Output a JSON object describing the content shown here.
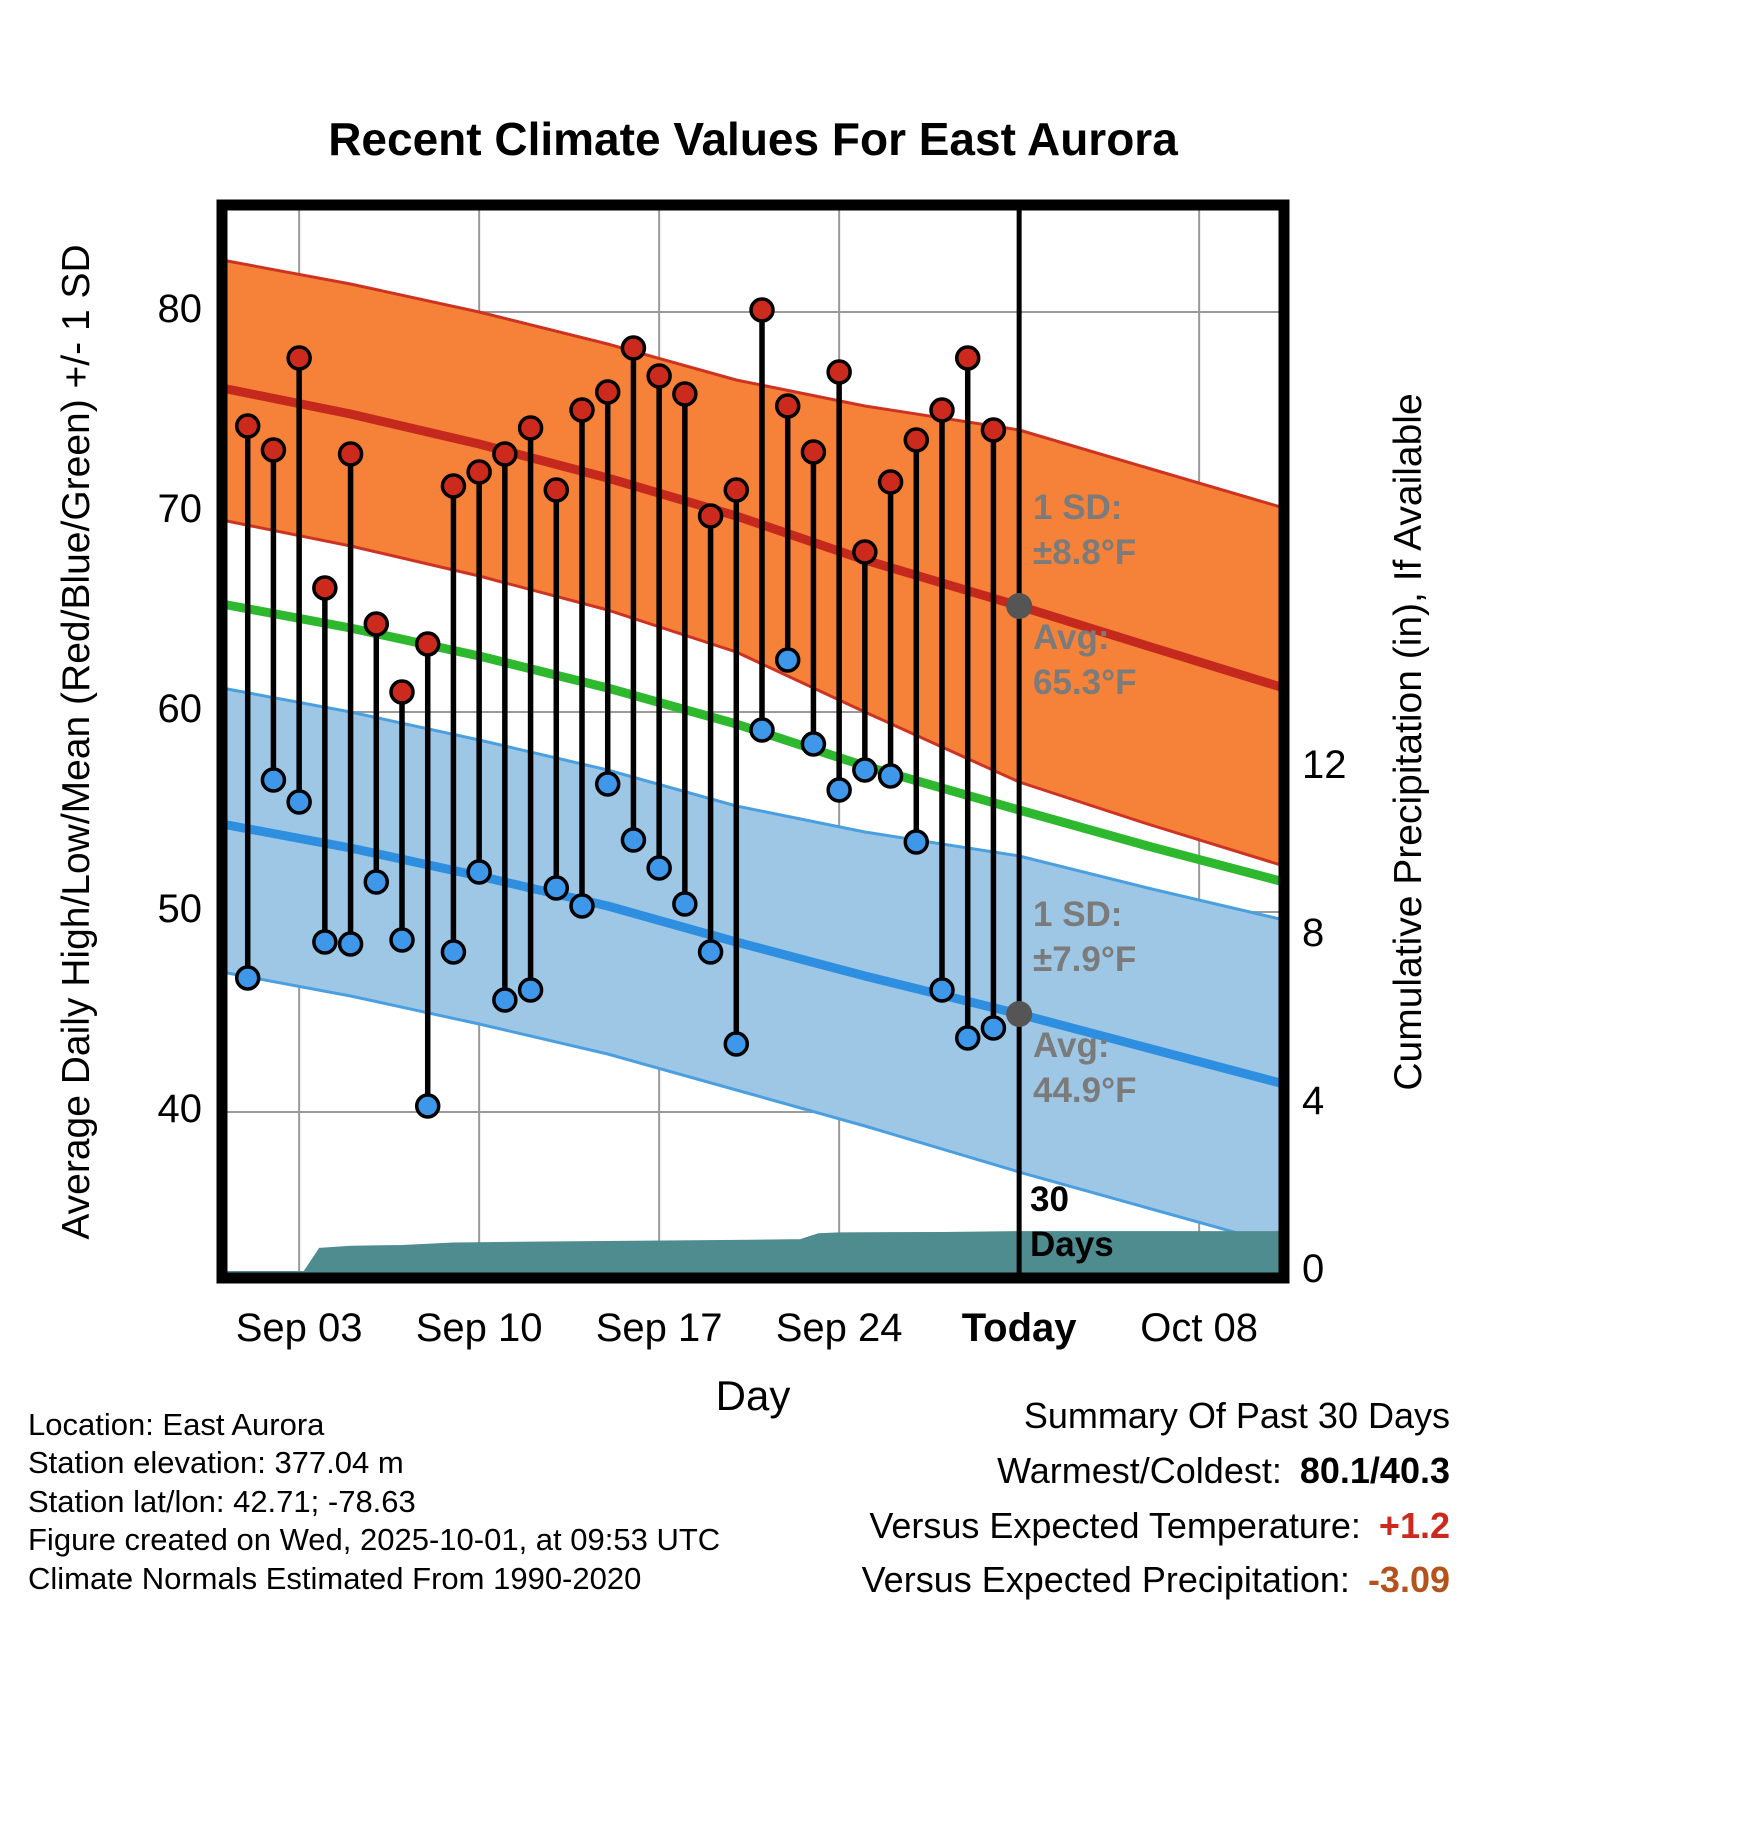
{
  "title": "Recent Climate Values For East Aurora",
  "axes": {
    "y_left_label": "Average Daily High/Low/Mean (Red/Blue/Green) +/- 1 SD",
    "y_right_label": "Cumulative Precipitation (in), If Available",
    "x_label": "Day",
    "x_ticks": [
      {
        "day": 3,
        "label": "Sep 03",
        "bold": false
      },
      {
        "day": 10,
        "label": "Sep 10",
        "bold": false
      },
      {
        "day": 17,
        "label": "Sep 17",
        "bold": false
      },
      {
        "day": 24,
        "label": "Sep 24",
        "bold": false
      },
      {
        "day": 31,
        "label": "Today",
        "bold": true
      },
      {
        "day": 38,
        "label": "Oct 08",
        "bold": false
      }
    ],
    "y_left_ticks": [
      {
        "value": 80,
        "label": "80"
      },
      {
        "value": 70,
        "label": "70"
      },
      {
        "value": 60,
        "label": "60"
      },
      {
        "value": 50,
        "label": "50"
      },
      {
        "value": 40,
        "label": "40"
      }
    ],
    "y_right_ticks": [
      {
        "value": 12,
        "label": "12"
      },
      {
        "value": 8,
        "label": "8"
      },
      {
        "value": 4,
        "label": "4"
      },
      {
        "value": 0,
        "label": "0"
      }
    ]
  },
  "annotations": {
    "high_sd": {
      "line1": "1 SD:",
      "line2": "±8.8°F"
    },
    "high_avg": {
      "line1": "Avg:",
      "line2": "65.3°F"
    },
    "low_sd": {
      "line1": "1 SD:",
      "line2": "±7.9°F"
    },
    "low_avg": {
      "line1": "Avg:",
      "line2": "44.9°F"
    },
    "period": {
      "line1": "30",
      "line2": "Days"
    }
  },
  "footer": {
    "lines": [
      "Location: East Aurora",
      "Station elevation: 377.04 m",
      "Station lat/lon: 42.71; -78.63",
      "Figure created on Wed, 2025-10-01, at 09:53 UTC",
      "Climate Normals Estimated From 1990-2020"
    ]
  },
  "summary": {
    "title": "Summary Of Past 30 Days",
    "rows": [
      {
        "label": "Warmest/Coldest:",
        "value": "80.1/40.3",
        "value_color": "#000000"
      },
      {
        "label": "Versus Expected Temperature:",
        "value": "+1.2",
        "value_color": "#cc2a1e"
      },
      {
        "label": "Versus Expected Precipitation:",
        "value": "-3.09",
        "value_color": "#b4541c"
      }
    ]
  },
  "colors": {
    "high_band": "#f58238",
    "high_edge": "#cd3322",
    "high_line": "#c5281c",
    "low_band": "#9ec7e5",
    "low_edge": "#4a9fe0",
    "low_line": "#2e8fe0",
    "mean_line": "#2eb82e",
    "precip_fill": "#4e8c90",
    "grid": "#9a9a9a",
    "stem": "#000000",
    "high_dot": "#cd2a1e",
    "low_dot": "#3e97e8",
    "marker_gray": "#555555",
    "today_line": "#000000",
    "border": "#000000"
  },
  "chart_data": {
    "type": "line",
    "title": "Recent Climate Values For East Aurora",
    "x_label": "Day",
    "y_left_label_units": "degrees F",
    "y_right_label_units": "inches",
    "x_unit": "days since Aug 31",
    "x_domain": [
      0,
      41.3
    ],
    "today_day": 31,
    "y_temp_ticks": [
      40,
      50,
      60,
      70,
      80
    ],
    "y_precip_ticks": [
      0,
      4,
      8,
      12
    ],
    "daily": {
      "days": [
        1,
        2,
        3,
        4,
        5,
        6,
        7,
        8,
        9,
        10,
        11,
        12,
        13,
        14,
        15,
        16,
        17,
        18,
        19,
        20,
        21,
        22,
        23,
        24,
        25,
        26,
        27,
        28,
        29,
        30
      ],
      "highs": [
        74.3,
        73.1,
        77.7,
        66.2,
        72.9,
        64.4,
        61.0,
        63.4,
        71.3,
        72.0,
        72.9,
        74.2,
        71.1,
        75.1,
        76.0,
        78.2,
        76.8,
        75.9,
        69.8,
        71.1,
        80.1,
        75.3,
        73.0,
        77.0,
        68.0,
        71.5,
        73.6,
        75.1,
        77.7,
        74.1
      ],
      "lows": [
        46.7,
        56.6,
        55.5,
        48.5,
        48.4,
        51.5,
        48.6,
        40.3,
        48.0,
        52.0,
        45.6,
        46.1,
        51.2,
        50.3,
        56.4,
        53.6,
        52.2,
        50.4,
        48.0,
        43.4,
        59.1,
        62.6,
        58.4,
        56.1,
        57.1,
        56.8,
        53.5,
        46.1,
        43.7,
        44.2
      ]
    },
    "normals": {
      "days": [
        0,
        5,
        10,
        15,
        20,
        25,
        31,
        36,
        41.3
      ],
      "high_upper": [
        82.6,
        81.4,
        80.0,
        78.4,
        76.6,
        75.3,
        74.1,
        72.2,
        70.2
      ],
      "high_avg": [
        76.2,
        74.9,
        73.4,
        71.7,
        69.8,
        67.6,
        65.3,
        63.3,
        61.2
      ],
      "high_lower": [
        69.6,
        68.3,
        66.8,
        65.1,
        63.0,
        60.0,
        56.5,
        54.4,
        52.3
      ],
      "mean_avg": [
        65.4,
        64.2,
        62.8,
        61.2,
        59.4,
        57.3,
        55.1,
        53.3,
        51.5
      ],
      "low_upper": [
        61.2,
        60.0,
        58.6,
        57.1,
        55.3,
        54.0,
        52.8,
        51.2,
        49.6
      ],
      "low_avg": [
        54.4,
        53.2,
        51.8,
        50.3,
        48.5,
        46.8,
        44.9,
        43.2,
        41.4
      ],
      "low_lower": [
        47.0,
        45.8,
        44.4,
        42.9,
        41.1,
        39.3,
        37.0,
        35.2,
        33.3
      ]
    },
    "precip": {
      "days": [
        0,
        3.2,
        3.8,
        5,
        7,
        9,
        12,
        16,
        20,
        22.5,
        23.2,
        24,
        28,
        31,
        41.3
      ],
      "cumulative_in": [
        0.0,
        0.0,
        0.55,
        0.6,
        0.62,
        0.68,
        0.7,
        0.72,
        0.74,
        0.76,
        0.9,
        0.92,
        0.93,
        0.95,
        0.95
      ]
    },
    "today_markers": {
      "high_avg_f": 65.3,
      "high_sd_f": 8.8,
      "low_avg_f": 44.9,
      "low_sd_f": 7.9
    },
    "summary": {
      "warmest_f": 80.1,
      "coldest_f": 40.3,
      "vs_expected_temp_f": 1.2,
      "vs_expected_precip_in": -3.09
    }
  }
}
